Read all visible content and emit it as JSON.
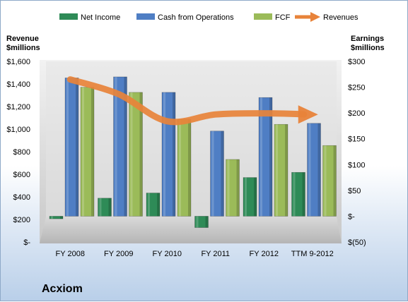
{
  "company": "Acxiom",
  "colors": {
    "net_income": "#2e8b57",
    "cash_from_operations": "#4f7ec4",
    "fcf": "#9bbb59",
    "revenues": "#e8833a"
  },
  "chart_data": {
    "type": "bar",
    "categories": [
      "FY 2008",
      "FY 2009",
      "FY 2010",
      "FY 2011",
      "FY 2012",
      "TTM 9-2012"
    ],
    "left_axis": {
      "title_lines": [
        "Revenue",
        "$millions"
      ],
      "ticks": [
        "$1,600",
        "$1,400",
        "$1,200",
        "$1,000",
        "$800",
        "$600",
        "$400",
        "$200",
        "$-"
      ],
      "range": [
        0,
        1600
      ]
    },
    "right_axis": {
      "title_lines": [
        "Earnings",
        "$millions"
      ],
      "ticks": [
        "$300",
        "$250",
        "$200",
        "$150",
        "$100",
        "$50",
        "$-",
        "$(50)"
      ],
      "range": [
        -50,
        300
      ]
    },
    "legend": {
      "placement": "top",
      "items": [
        "Net Income",
        "Cash from Operations",
        "FCF",
        "Revenues"
      ]
    },
    "series": [
      {
        "name": "Net Income",
        "axis": "right",
        "kind": "bar",
        "values": [
          -5,
          35,
          45,
          -22,
          75,
          85
        ]
      },
      {
        "name": "Cash from Operations",
        "axis": "right",
        "kind": "bar",
        "values": [
          268,
          270,
          240,
          165,
          230,
          180
        ]
      },
      {
        "name": "FCF",
        "axis": "right",
        "kind": "bar",
        "values": [
          250,
          240,
          188,
          110,
          178,
          137
        ]
      },
      {
        "name": "Revenues",
        "axis": "left",
        "kind": "line-arrow",
        "values": [
          1440,
          1310,
          1070,
          1130,
          1140,
          1130
        ]
      }
    ]
  }
}
